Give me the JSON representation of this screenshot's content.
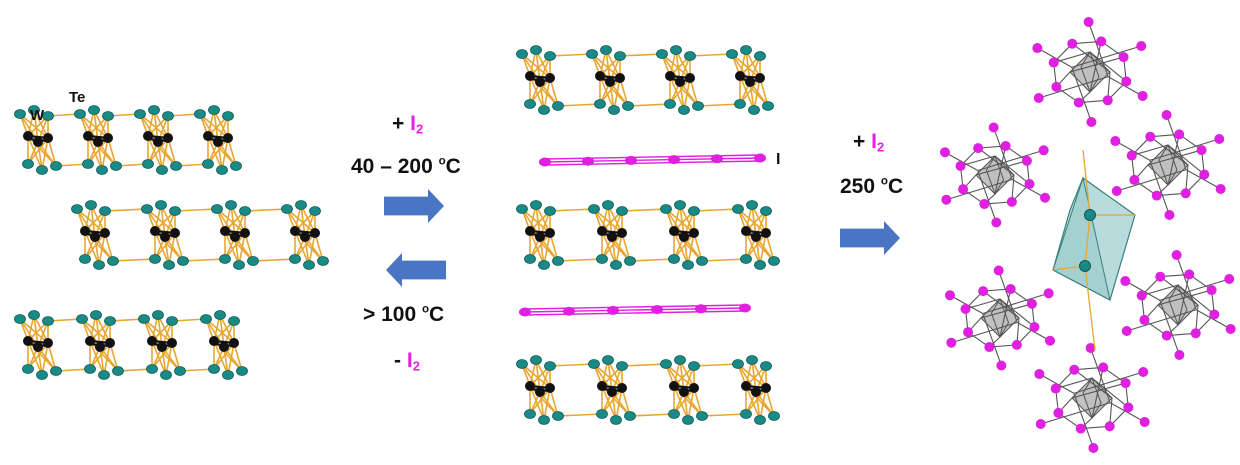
{
  "labels": {
    "W": "W",
    "Te": "Te",
    "I": "I",
    "forward_plus": "+",
    "forward_species": "I",
    "forward_subscript": "2",
    "forward_temp": "40 – 200",
    "forward_temp_sup": "o",
    "forward_temp_unit": "C",
    "reverse_temp": "> 100",
    "reverse_temp_sup": "o",
    "reverse_temp_unit": "C",
    "reverse_minus": "-",
    "reverse_species": "I",
    "reverse_subscript": "2",
    "right_plus": "+",
    "right_species": "I",
    "right_subscript": "2",
    "right_temp": "250",
    "right_temp_sup": "o",
    "right_temp_unit": "C"
  },
  "colors": {
    "tungsten": "#111111",
    "tellurium": "#1a8a86",
    "iodine": "#e020e0",
    "bond_gold": "#e8a630",
    "arrow_blue": "#4a74c4",
    "octahedron_gray": "#8e8e8e",
    "polyhedron_teal": "#7ebdbd"
  },
  "icons": {
    "forward_arrow": "arrow-right-icon",
    "reverse_arrow": "arrow-left-icon",
    "right_arrow": "arrow-right-icon"
  }
}
